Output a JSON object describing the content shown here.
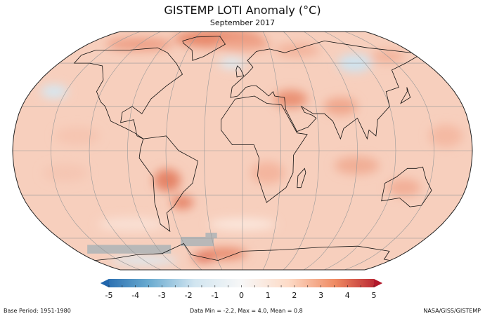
{
  "title": "GISTEMP LOTI Anomaly (°C)",
  "subtitle": "September 2017",
  "colorbar": {
    "ticks": [
      "-5",
      "-4",
      "-3",
      "-2",
      "-1",
      "0",
      "1",
      "2",
      "3",
      "4",
      "5"
    ],
    "range": [
      -5,
      5
    ],
    "colors": [
      "#2166ac",
      "#67a9cf",
      "#d1e5f0",
      "#f7f7f7",
      "#fddbc7",
      "#ef8a62",
      "#b2182b"
    ]
  },
  "footer": {
    "base_period": "Base Period: 1951-1980",
    "stats": "Data Min = -2.2, Max = 4.0, Mean = 0.8",
    "credit": "NASA/GISS/GISTEMP"
  },
  "map": {
    "projection": "Robinson",
    "ocean_fill": "#f7cfbd",
    "no_data_color": "#b8b8b8"
  }
}
